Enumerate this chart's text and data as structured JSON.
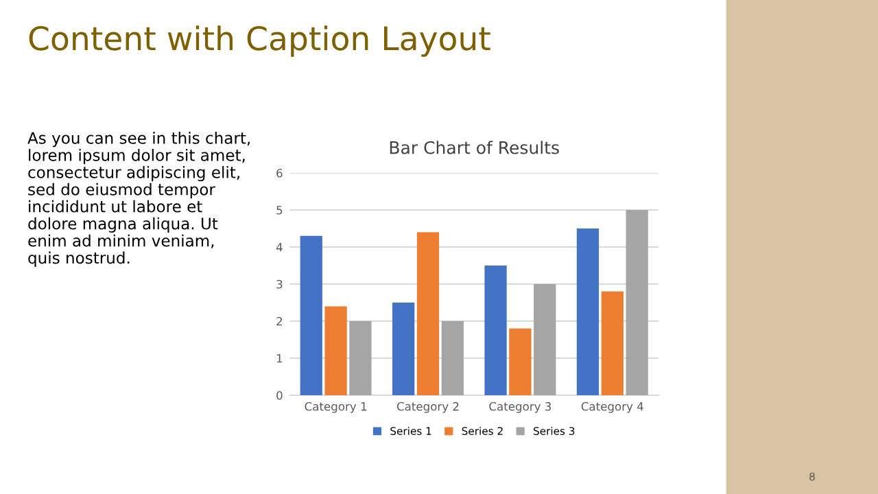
{
  "chart_data": {
    "type": "bar",
    "title": "Bar Chart of Results",
    "categories": [
      "Category 1",
      "Category 2",
      "Category 3",
      "Category 4"
    ],
    "series": [
      {
        "name": "Series 1",
        "color": "#4472c4",
        "values": [
          4.3,
          2.5,
          3.5,
          4.5
        ]
      },
      {
        "name": "Series 2",
        "color": "#ed7d31",
        "values": [
          2.4,
          4.4,
          1.8,
          2.8
        ]
      },
      {
        "name": "Series 3",
        "color": "#a5a5a5",
        "values": [
          2,
          2,
          3,
          5
        ]
      }
    ],
    "ylim": [
      0,
      6
    ],
    "yticks": [
      0,
      1,
      2,
      3,
      4,
      5,
      6
    ],
    "grid": "y",
    "legend": "bottom",
    "annotations": [
      "Content with Caption Layout",
      "As you can see in this chart,\nlorem ipsum dolor sit amet,\nconsectetur adipiscing elit,\nsed do eiusmod tempor\nincididunt ut labore et\ndolore magna aliqua. Ut\nenim ad minim veniam,\nquis nostrud.",
      "8"
    ]
  }
}
